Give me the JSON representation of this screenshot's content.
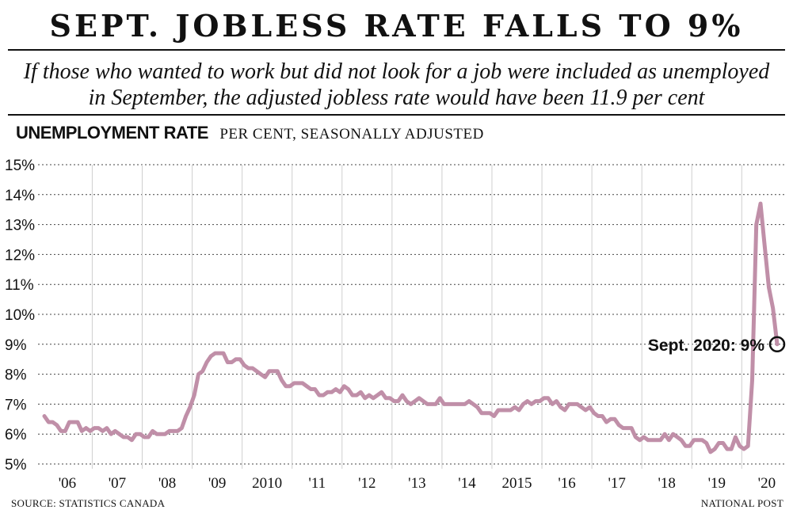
{
  "header": {
    "title": "SEPT. JOBLESS RATE FALLS TO 9%",
    "subtitle_line1": "If those who wanted to work but did not look for a job were included as unemployed",
    "subtitle_line2": "in September, the adjusted jobless rate would have been 11.9 per cent"
  },
  "chart_label": {
    "bold": "UNEMPLOYMENT RATE",
    "plain": "PER CENT, SEASONALLY ADJUSTED"
  },
  "footer": {
    "source": "SOURCE: STATISTICS CANADA",
    "credit": "NATIONAL POST"
  },
  "colors": {
    "line": "#c08fa8",
    "grid": "#cfcfcf",
    "text": "#111111"
  },
  "chart_data": {
    "type": "line",
    "title": "SEPT. JOBLESS RATE FALLS TO 9%",
    "ylabel": "PER CENT, SEASONALLY ADJUSTED",
    "xlabel": "",
    "ylim": [
      5,
      15
    ],
    "y_ticks": [
      "5%",
      "6%",
      "7%",
      "8%",
      "9%",
      "10%",
      "11%",
      "12%",
      "13%",
      "14%",
      "15%"
    ],
    "x_ticks": [
      "'06",
      "'07",
      "'08",
      "'09",
      "2010",
      "'11",
      "'12",
      "'13",
      "'14",
      "2015",
      "'16",
      "'17",
      "'18",
      "'19",
      "'20"
    ],
    "grid": "horizontal dashed, vertical year separators",
    "annotation": {
      "text": "Sept. 2020: 9%",
      "date": "2020-09",
      "value": 9.0
    },
    "series": [
      {
        "start": "2006-01",
        "frequency": "monthly",
        "values": [
          6.6,
          6.4,
          6.4,
          6.3,
          6.1,
          6.1,
          6.4,
          6.4,
          6.4,
          6.1,
          6.2,
          6.1,
          6.2,
          6.2,
          6.1,
          6.2,
          6.0,
          6.1,
          6.0,
          5.9,
          5.9,
          5.8,
          6.0,
          6.0,
          5.9,
          5.9,
          6.1,
          6.0,
          6.0,
          6.0,
          6.1,
          6.1,
          6.1,
          6.2,
          6.6,
          6.9,
          7.3,
          8.0,
          8.1,
          8.4,
          8.6,
          8.7,
          8.7,
          8.7,
          8.4,
          8.4,
          8.5,
          8.5,
          8.3,
          8.2,
          8.2,
          8.1,
          8.0,
          7.9,
          8.1,
          8.1,
          8.1,
          7.8,
          7.6,
          7.6,
          7.7,
          7.7,
          7.7,
          7.6,
          7.5,
          7.5,
          7.3,
          7.3,
          7.4,
          7.4,
          7.5,
          7.4,
          7.6,
          7.5,
          7.3,
          7.3,
          7.4,
          7.2,
          7.3,
          7.2,
          7.3,
          7.4,
          7.2,
          7.2,
          7.1,
          7.1,
          7.3,
          7.1,
          7.0,
          7.1,
          7.2,
          7.1,
          7.0,
          7.0,
          7.0,
          7.2,
          7.0,
          7.0,
          7.0,
          7.0,
          7.0,
          7.0,
          7.1,
          7.0,
          6.9,
          6.7,
          6.7,
          6.7,
          6.6,
          6.8,
          6.8,
          6.8,
          6.8,
          6.9,
          6.8,
          7.0,
          7.1,
          7.0,
          7.1,
          7.1,
          7.2,
          7.2,
          7.0,
          7.1,
          6.9,
          6.8,
          7.0,
          7.0,
          7.0,
          6.9,
          6.8,
          6.9,
          6.7,
          6.6,
          6.6,
          6.4,
          6.5,
          6.5,
          6.3,
          6.2,
          6.2,
          6.2,
          5.9,
          5.8,
          5.9,
          5.8,
          5.8,
          5.8,
          5.8,
          6.0,
          5.8,
          6.0,
          5.9,
          5.8,
          5.6,
          5.6,
          5.8,
          5.8,
          5.8,
          5.7,
          5.4,
          5.5,
          5.7,
          5.7,
          5.5,
          5.5,
          5.9,
          5.6,
          5.5,
          5.6,
          7.8,
          13.0,
          13.7,
          12.3,
          10.9,
          10.2,
          9.0
        ]
      }
    ]
  }
}
